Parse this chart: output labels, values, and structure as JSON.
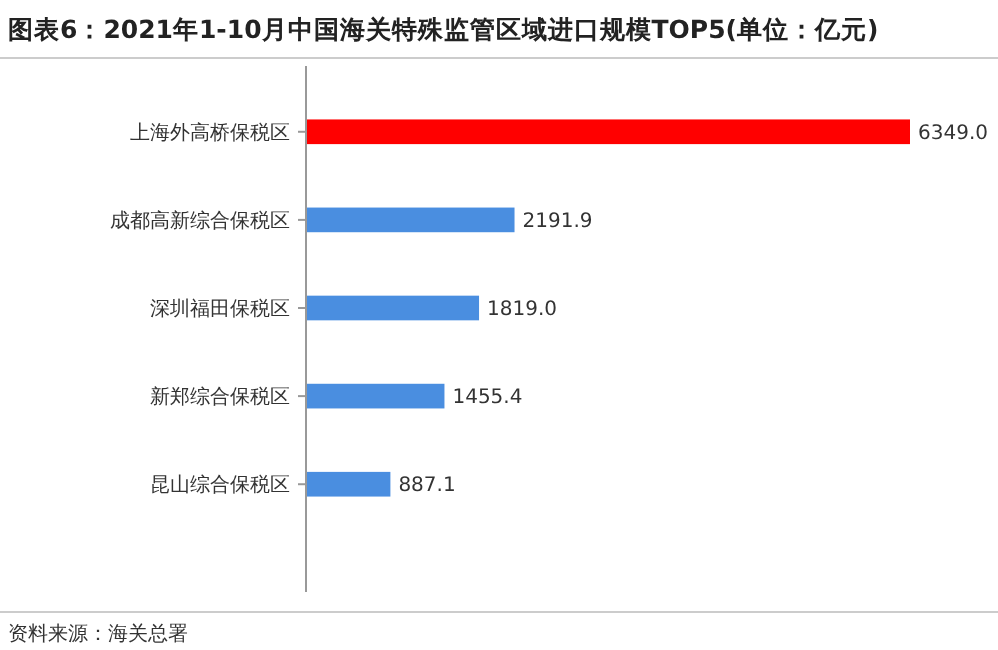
{
  "chart_data": {
    "type": "bar",
    "orientation": "horizontal",
    "title": "图表6：2021年1-10月中国海关特殊监管区域进口规模TOP5(单位：亿元)",
    "categories": [
      "上海外高桥保税区",
      "成都高新综合保税区",
      "深圳福田保税区",
      "新郑综合保税区",
      "昆山综合保税区"
    ],
    "values": [
      6349.0,
      2191.9,
      1819.0,
      1455.4,
      887.1
    ],
    "colors": [
      "#ff0000",
      "#4a8ee0",
      "#4a8ee0",
      "#4a8ee0",
      "#4a8ee0"
    ],
    "value_labels": [
      "6349.0",
      "2191.9",
      "1819.0",
      "1455.4",
      "887.1"
    ],
    "annotations": [
      "资料来源：海关总署"
    ]
  }
}
